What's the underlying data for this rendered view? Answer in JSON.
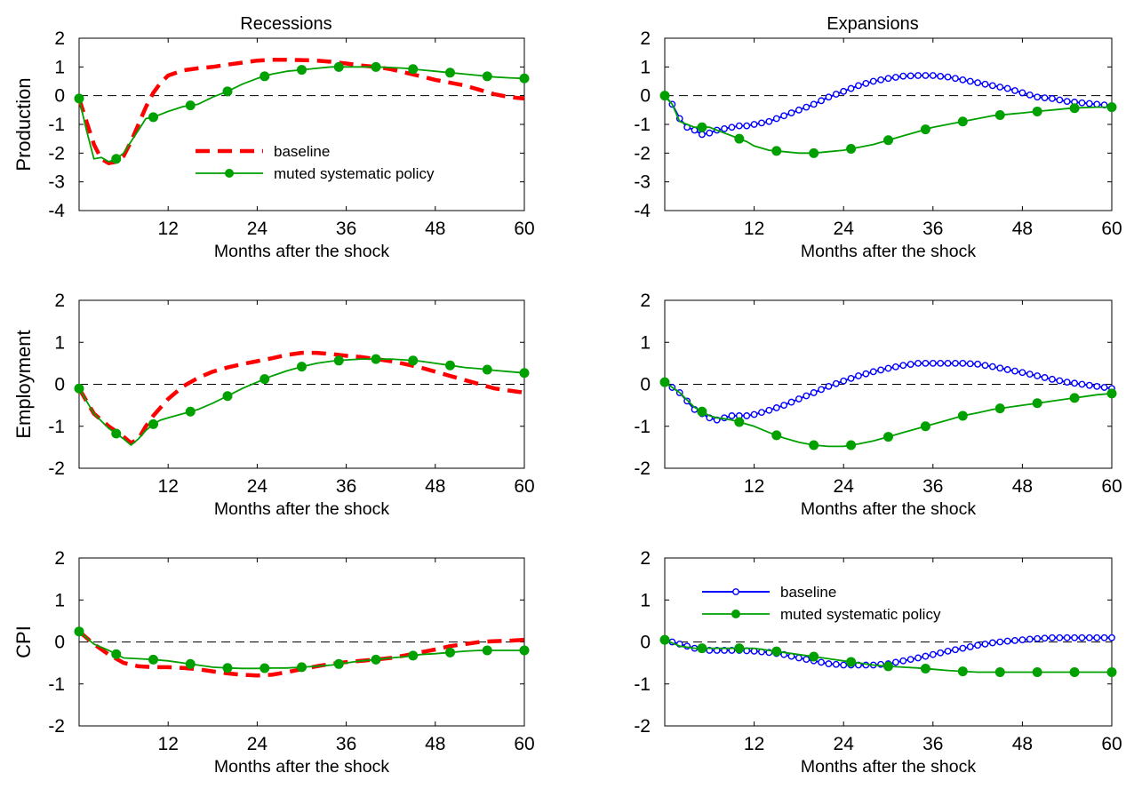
{
  "titles": {
    "left": "Recessions",
    "right": "Expansions"
  },
  "row_labels": [
    "Production",
    "Employment",
    "CPI"
  ],
  "x_axis": {
    "label": "Months after the shock",
    "ticks": [
      12,
      24,
      36,
      48,
      60
    ],
    "lim": [
      0,
      60
    ]
  },
  "legend": {
    "baseline": "baseline",
    "muted": "muted systematic policy"
  },
  "colors": {
    "baseline_recession": "#ff0000",
    "baseline_expansion": "#0000ff",
    "muted": "#00a000",
    "zero_line": "#000000"
  },
  "chart_data": [
    {
      "type": "line",
      "row": "Production",
      "regime": "Recessions",
      "ylim": [
        -4,
        2
      ],
      "yticks": [
        -4,
        -3,
        -2,
        -1,
        0,
        1,
        2
      ],
      "series": [
        {
          "name": "baseline",
          "style": "dashed",
          "x": [
            0,
            1,
            2,
            3,
            4,
            5,
            6,
            7,
            8,
            9,
            10,
            11,
            12,
            14,
            16,
            18,
            20,
            22,
            24,
            26,
            28,
            30,
            32,
            34,
            36,
            38,
            40,
            42,
            44,
            46,
            48,
            50,
            52,
            54,
            56,
            58,
            60
          ],
          "y": [
            -0.1,
            -0.9,
            -1.7,
            -2.2,
            -2.35,
            -2.3,
            -2.1,
            -1.6,
            -1.0,
            -0.4,
            0.1,
            0.45,
            0.7,
            0.88,
            0.95,
            1.0,
            1.08,
            1.15,
            1.22,
            1.25,
            1.25,
            1.24,
            1.22,
            1.18,
            1.12,
            1.05,
            1.0,
            0.92,
            0.8,
            0.68,
            0.55,
            0.45,
            0.35,
            0.2,
            0.05,
            -0.05,
            -0.1
          ]
        },
        {
          "name": "muted systematic policy",
          "style": "solid-dot",
          "x": [
            0,
            1,
            2,
            3,
            4,
            5,
            6,
            7,
            8,
            9,
            10,
            11,
            12,
            14,
            16,
            18,
            20,
            22,
            24,
            26,
            28,
            30,
            32,
            34,
            36,
            38,
            40,
            42,
            44,
            46,
            48,
            50,
            52,
            54,
            56,
            58,
            60
          ],
          "y": [
            -0.1,
            -1.2,
            -2.2,
            -2.15,
            -2.3,
            -2.2,
            -2.0,
            -1.6,
            -1.2,
            -0.8,
            -0.75,
            -0.65,
            -0.55,
            -0.38,
            -0.3,
            -0.05,
            0.15,
            0.4,
            0.6,
            0.75,
            0.85,
            0.9,
            0.95,
            1.0,
            1.0,
            1.0,
            1.0,
            0.98,
            0.95,
            0.9,
            0.85,
            0.8,
            0.75,
            0.7,
            0.65,
            0.62,
            0.6
          ]
        }
      ]
    },
    {
      "type": "line",
      "row": "Production",
      "regime": "Expansions",
      "ylim": [
        -4,
        2
      ],
      "yticks": [
        -4,
        -3,
        -2,
        -1,
        0,
        1,
        2
      ],
      "series": [
        {
          "name": "baseline",
          "style": "solid-circle",
          "x": [
            0,
            1,
            2,
            3,
            4,
            5,
            6,
            7,
            8,
            9,
            10,
            11,
            12,
            14,
            16,
            18,
            20,
            22,
            24,
            26,
            28,
            30,
            32,
            34,
            36,
            38,
            40,
            42,
            44,
            46,
            48,
            50,
            52,
            54,
            56,
            58,
            60
          ],
          "y": [
            0.0,
            -0.3,
            -0.8,
            -1.1,
            -1.2,
            -1.35,
            -1.3,
            -1.2,
            -1.15,
            -1.1,
            -1.05,
            -1.05,
            -1.0,
            -0.9,
            -0.7,
            -0.5,
            -0.3,
            -0.05,
            0.15,
            0.35,
            0.5,
            0.6,
            0.68,
            0.7,
            0.7,
            0.65,
            0.55,
            0.45,
            0.35,
            0.25,
            0.1,
            -0.05,
            -0.1,
            -0.2,
            -0.25,
            -0.3,
            -0.35
          ]
        },
        {
          "name": "muted systematic policy",
          "style": "solid-dot",
          "x": [
            0,
            1,
            2,
            3,
            4,
            5,
            6,
            7,
            8,
            9,
            10,
            11,
            12,
            14,
            16,
            18,
            20,
            22,
            24,
            26,
            28,
            30,
            32,
            34,
            36,
            38,
            40,
            42,
            44,
            46,
            48,
            50,
            52,
            54,
            56,
            58,
            60
          ],
          "y": [
            0.0,
            -0.3,
            -0.9,
            -1.0,
            -1.1,
            -1.1,
            -1.1,
            -1.2,
            -1.3,
            -1.4,
            -1.5,
            -1.6,
            -1.75,
            -1.9,
            -1.95,
            -2.0,
            -2.0,
            -1.95,
            -1.9,
            -1.8,
            -1.7,
            -1.55,
            -1.4,
            -1.25,
            -1.1,
            -1.0,
            -0.9,
            -0.8,
            -0.7,
            -0.65,
            -0.6,
            -0.55,
            -0.5,
            -0.45,
            -0.42,
            -0.4,
            -0.4
          ]
        }
      ]
    },
    {
      "type": "line",
      "row": "Employment",
      "regime": "Recessions",
      "ylim": [
        -2,
        2
      ],
      "yticks": [
        -2,
        -1,
        0,
        1,
        2
      ],
      "series": [
        {
          "name": "baseline",
          "style": "dashed",
          "x": [
            0,
            2,
            4,
            6,
            7,
            8,
            9,
            10,
            11,
            12,
            13,
            14,
            16,
            18,
            20,
            22,
            24,
            26,
            28,
            30,
            32,
            34,
            36,
            38,
            40,
            42,
            44,
            46,
            48,
            50,
            52,
            54,
            56,
            58,
            60
          ],
          "y": [
            -0.1,
            -0.7,
            -1.0,
            -1.25,
            -1.4,
            -1.3,
            -1.0,
            -0.75,
            -0.55,
            -0.35,
            -0.2,
            -0.05,
            0.15,
            0.3,
            0.4,
            0.48,
            0.55,
            0.62,
            0.7,
            0.75,
            0.75,
            0.72,
            0.68,
            0.65,
            0.6,
            0.55,
            0.48,
            0.4,
            0.3,
            0.2,
            0.1,
            0.0,
            -0.1,
            -0.15,
            -0.2
          ]
        },
        {
          "name": "muted systematic policy",
          "style": "solid-dot",
          "x": [
            0,
            2,
            4,
            6,
            7,
            8,
            9,
            10,
            11,
            12,
            13,
            14,
            16,
            18,
            20,
            22,
            24,
            26,
            28,
            30,
            32,
            34,
            36,
            38,
            40,
            42,
            44,
            46,
            48,
            50,
            52,
            54,
            56,
            58,
            60
          ],
          "y": [
            -0.1,
            -0.7,
            -1.05,
            -1.3,
            -1.45,
            -1.3,
            -1.1,
            -0.95,
            -0.85,
            -0.8,
            -0.75,
            -0.7,
            -0.6,
            -0.45,
            -0.28,
            -0.1,
            0.05,
            0.2,
            0.32,
            0.42,
            0.5,
            0.55,
            0.58,
            0.6,
            0.6,
            0.6,
            0.58,
            0.55,
            0.5,
            0.45,
            0.4,
            0.37,
            0.33,
            0.3,
            0.27
          ]
        }
      ]
    },
    {
      "type": "line",
      "row": "Employment",
      "regime": "Expansions",
      "ylim": [
        -2,
        2
      ],
      "yticks": [
        -2,
        -1,
        0,
        1,
        2
      ],
      "series": [
        {
          "name": "baseline",
          "style": "solid-circle",
          "x": [
            0,
            2,
            4,
            6,
            7,
            8,
            9,
            10,
            11,
            12,
            14,
            16,
            18,
            20,
            22,
            24,
            26,
            28,
            30,
            32,
            34,
            36,
            38,
            40,
            42,
            44,
            46,
            48,
            50,
            52,
            54,
            56,
            58,
            60
          ],
          "y": [
            0.05,
            -0.2,
            -0.6,
            -0.8,
            -0.85,
            -0.8,
            -0.75,
            -0.75,
            -0.75,
            -0.72,
            -0.62,
            -0.5,
            -0.35,
            -0.2,
            -0.05,
            0.08,
            0.2,
            0.3,
            0.38,
            0.45,
            0.5,
            0.5,
            0.5,
            0.5,
            0.48,
            0.42,
            0.35,
            0.28,
            0.2,
            0.12,
            0.05,
            0.0,
            -0.05,
            -0.1
          ]
        },
        {
          "name": "muted systematic policy",
          "style": "solid-dot",
          "x": [
            0,
            2,
            4,
            6,
            7,
            8,
            9,
            10,
            11,
            12,
            14,
            16,
            18,
            20,
            22,
            24,
            26,
            28,
            30,
            32,
            34,
            36,
            38,
            40,
            42,
            44,
            46,
            48,
            50,
            52,
            54,
            56,
            58,
            60
          ],
          "y": [
            0.05,
            -0.2,
            -0.55,
            -0.75,
            -0.8,
            -0.82,
            -0.85,
            -0.9,
            -0.95,
            -1.0,
            -1.15,
            -1.28,
            -1.38,
            -1.45,
            -1.48,
            -1.48,
            -1.42,
            -1.35,
            -1.25,
            -1.15,
            -1.05,
            -0.95,
            -0.85,
            -0.75,
            -0.68,
            -0.6,
            -0.55,
            -0.5,
            -0.45,
            -0.4,
            -0.35,
            -0.3,
            -0.25,
            -0.22
          ]
        }
      ]
    },
    {
      "type": "line",
      "row": "CPI",
      "regime": "Recessions",
      "ylim": [
        -2,
        2
      ],
      "yticks": [
        -2,
        -1,
        0,
        1,
        2
      ],
      "series": [
        {
          "name": "baseline",
          "style": "dashed",
          "x": [
            0,
            2,
            4,
            6,
            8,
            10,
            12,
            14,
            16,
            18,
            20,
            22,
            24,
            26,
            28,
            30,
            32,
            34,
            36,
            38,
            40,
            42,
            44,
            46,
            48,
            50,
            52,
            54,
            56,
            58,
            60
          ],
          "y": [
            0.25,
            -0.05,
            -0.3,
            -0.5,
            -0.58,
            -0.6,
            -0.6,
            -0.62,
            -0.65,
            -0.7,
            -0.75,
            -0.78,
            -0.8,
            -0.78,
            -0.72,
            -0.65,
            -0.58,
            -0.52,
            -0.48,
            -0.45,
            -0.42,
            -0.38,
            -0.32,
            -0.25,
            -0.18,
            -0.1,
            -0.05,
            0.0,
            0.02,
            0.03,
            0.05
          ]
        },
        {
          "name": "muted systematic policy",
          "style": "solid-dot",
          "x": [
            0,
            2,
            4,
            6,
            8,
            10,
            12,
            14,
            16,
            18,
            20,
            22,
            24,
            26,
            28,
            30,
            32,
            34,
            36,
            38,
            40,
            42,
            44,
            46,
            48,
            50,
            52,
            54,
            56,
            58,
            60
          ],
          "y": [
            0.25,
            -0.05,
            -0.2,
            -0.38,
            -0.4,
            -0.42,
            -0.45,
            -0.5,
            -0.55,
            -0.6,
            -0.62,
            -0.63,
            -0.63,
            -0.62,
            -0.62,
            -0.6,
            -0.58,
            -0.55,
            -0.5,
            -0.45,
            -0.42,
            -0.38,
            -0.35,
            -0.3,
            -0.28,
            -0.25,
            -0.22,
            -0.2,
            -0.2,
            -0.2,
            -0.2
          ]
        }
      ]
    },
    {
      "type": "line",
      "row": "CPI",
      "regime": "Expansions",
      "ylim": [
        -2,
        2
      ],
      "yticks": [
        -2,
        -1,
        0,
        1,
        2
      ],
      "series": [
        {
          "name": "baseline",
          "style": "solid-circle",
          "x": [
            0,
            2,
            4,
            6,
            8,
            10,
            12,
            14,
            16,
            18,
            20,
            22,
            24,
            26,
            28,
            30,
            32,
            34,
            36,
            38,
            40,
            42,
            44,
            46,
            48,
            50,
            52,
            54,
            56,
            58,
            60
          ],
          "y": [
            0.05,
            -0.05,
            -0.15,
            -0.2,
            -0.2,
            -0.2,
            -0.22,
            -0.25,
            -0.3,
            -0.38,
            -0.45,
            -0.52,
            -0.55,
            -0.55,
            -0.55,
            -0.52,
            -0.45,
            -0.38,
            -0.3,
            -0.22,
            -0.15,
            -0.08,
            -0.02,
            0.02,
            0.05,
            0.08,
            0.1,
            0.1,
            0.1,
            0.1,
            0.1
          ]
        },
        {
          "name": "muted systematic policy",
          "style": "solid-dot",
          "x": [
            0,
            2,
            4,
            6,
            8,
            10,
            12,
            14,
            16,
            18,
            20,
            22,
            24,
            26,
            28,
            30,
            32,
            34,
            36,
            38,
            40,
            42,
            44,
            46,
            48,
            50,
            52,
            54,
            56,
            58,
            60
          ],
          "y": [
            0.05,
            -0.1,
            -0.15,
            -0.15,
            -0.15,
            -0.15,
            -0.15,
            -0.2,
            -0.25,
            -0.3,
            -0.35,
            -0.4,
            -0.45,
            -0.5,
            -0.55,
            -0.58,
            -0.6,
            -0.62,
            -0.65,
            -0.68,
            -0.7,
            -0.72,
            -0.72,
            -0.72,
            -0.72,
            -0.72,
            -0.72,
            -0.72,
            -0.72,
            -0.72,
            -0.72
          ]
        }
      ]
    }
  ]
}
